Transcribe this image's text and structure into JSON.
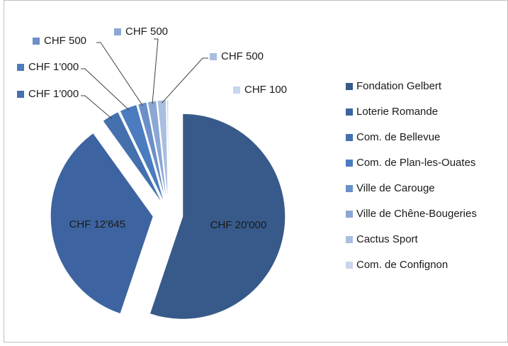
{
  "chart_data": {
    "type": "pie",
    "categories": [
      "Fondation Gelbert",
      "Loterie Romande",
      "Com. de Bellevue",
      "Com. de Plan-les-Ouates",
      "Ville de Carouge",
      "Ville de Chêne-Bougeries",
      "Cactus Sport",
      "Com. de Confignon"
    ],
    "values": [
      20000,
      12645,
      1000,
      1000,
      500,
      500,
      500,
      100
    ],
    "value_labels": [
      "CHF 20'000",
      "CHF 12'645",
      "CHF 1'000",
      "CHF 1'000",
      "CHF 500",
      "CHF 500",
      "CHF 500",
      "CHF 100"
    ],
    "colors": [
      "#375a8a",
      "#3d64a0",
      "#4470ae",
      "#4a7cbf",
      "#6b8fc8",
      "#8ba7d4",
      "#a9bee1",
      "#c8d5ec"
    ],
    "legend": "right"
  }
}
